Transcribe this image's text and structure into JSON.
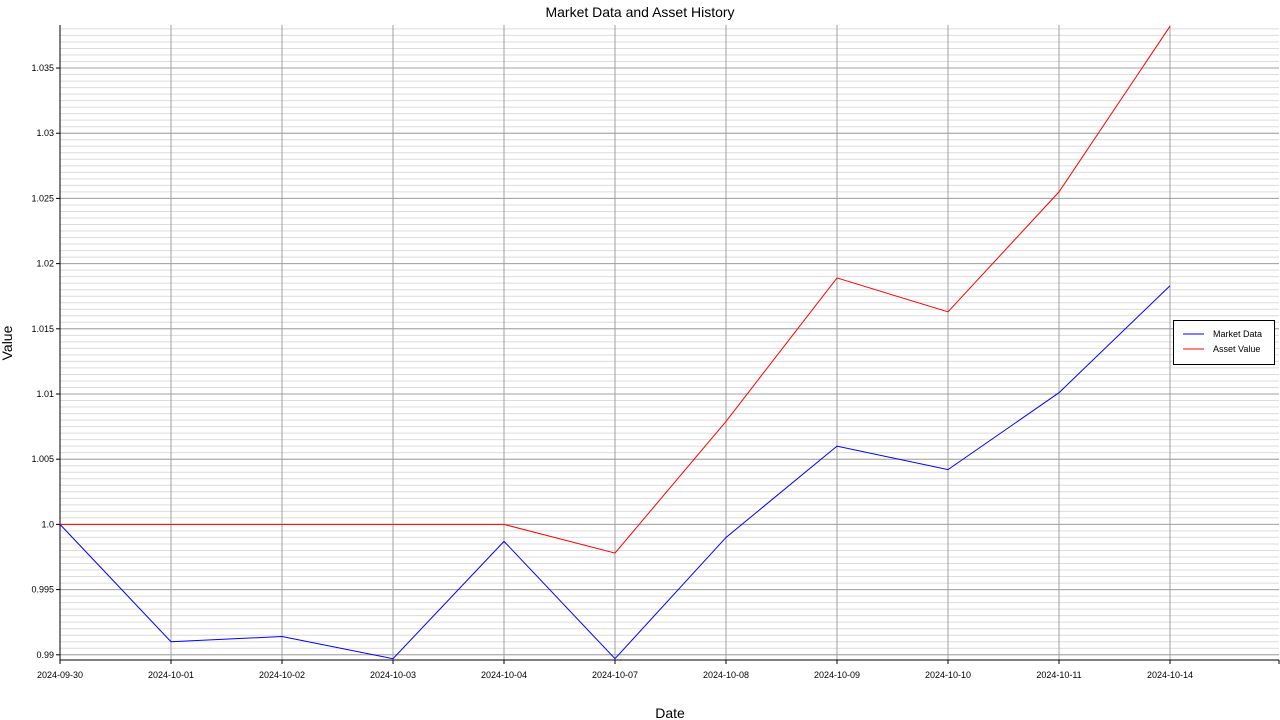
{
  "chart_data": {
    "type": "line",
    "title": "Market Data and Asset History",
    "xlabel": "Date",
    "ylabel": "Value",
    "categories": [
      "2024-09-30",
      "2024-10-01",
      "2024-10-02",
      "2024-10-03",
      "2024-10-04",
      "2024-10-07",
      "2024-10-08",
      "2024-10-09",
      "2024-10-10",
      "2024-10-11",
      "2024-10-14"
    ],
    "series": [
      {
        "name": "Market Data",
        "color": "#0000ff",
        "values": [
          1.0,
          0.991,
          0.9914,
          0.9897,
          0.9987,
          0.9897,
          0.999,
          1.006,
          1.0042,
          1.0101,
          1.0183
        ]
      },
      {
        "name": "Asset Value",
        "color": "#ff0000",
        "values": [
          1.0,
          1.0,
          1.0,
          1.0,
          1.0,
          0.9978,
          1.0079,
          1.0189,
          1.0163,
          1.0255,
          1.0382
        ]
      }
    ],
    "ylim": [
      0.9896,
      1.0383
    ],
    "yticks": [
      0.99,
      0.995,
      1.0,
      1.005,
      1.01,
      1.015,
      1.02,
      1.025,
      1.03,
      1.035
    ],
    "ytick_labels": [
      "0.99",
      "0.995",
      "1.0",
      "1.005",
      "1.01",
      "1.015",
      "1.02",
      "1.025",
      "1.03",
      "1.035"
    ],
    "grid": true,
    "legend_position": "right"
  }
}
